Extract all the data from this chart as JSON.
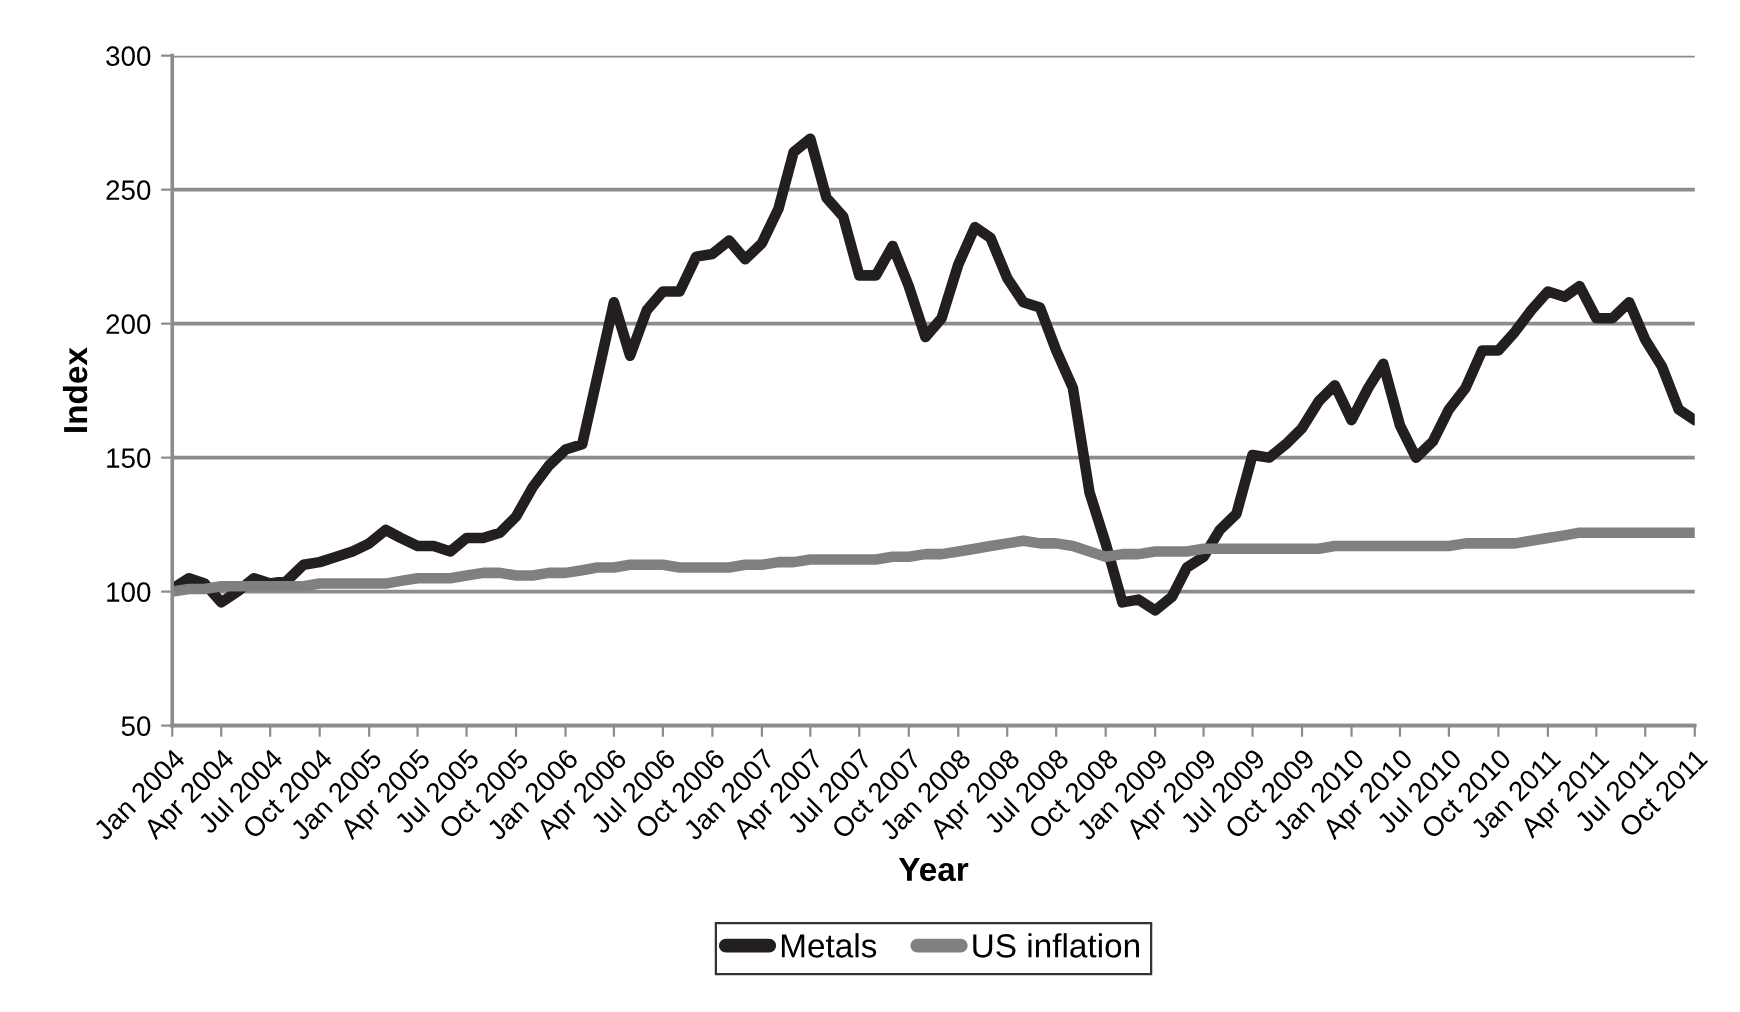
{
  "chart_data": {
    "type": "line",
    "xlabel": "Year",
    "ylabel": "Index",
    "x": [
      "2004-01",
      "2004-02",
      "2004-03",
      "2004-04",
      "2004-05",
      "2004-06",
      "2004-07",
      "2004-08",
      "2004-09",
      "2004-10",
      "2004-11",
      "2004-12",
      "2005-01",
      "2005-02",
      "2005-03",
      "2005-04",
      "2005-05",
      "2005-06",
      "2005-07",
      "2005-08",
      "2005-09",
      "2005-10",
      "2005-11",
      "2005-12",
      "2006-01",
      "2006-02",
      "2006-03",
      "2006-04",
      "2006-05",
      "2006-06",
      "2006-07",
      "2006-08",
      "2006-09",
      "2006-10",
      "2006-11",
      "2006-12",
      "2007-01",
      "2007-02",
      "2007-03",
      "2007-04",
      "2007-05",
      "2007-06",
      "2007-07",
      "2007-08",
      "2007-09",
      "2007-10",
      "2007-11",
      "2007-12",
      "2008-01",
      "2008-02",
      "2008-03",
      "2008-04",
      "2008-05",
      "2008-06",
      "2008-07",
      "2008-08",
      "2008-09",
      "2008-10",
      "2008-11",
      "2008-12",
      "2009-01",
      "2009-02",
      "2009-03",
      "2009-04",
      "2009-05",
      "2009-06",
      "2009-07",
      "2009-08",
      "2009-09",
      "2009-10",
      "2009-11",
      "2009-12",
      "2010-01",
      "2010-02",
      "2010-03",
      "2010-04",
      "2010-05",
      "2010-06",
      "2010-07",
      "2010-08",
      "2010-09",
      "2010-10",
      "2010-11",
      "2010-12",
      "2011-01",
      "2011-02",
      "2011-03",
      "2011-04",
      "2011-05",
      "2011-06",
      "2011-07",
      "2011-08",
      "2011-09",
      "2011-10"
    ],
    "series": [
      {
        "name": "Metals",
        "color": "#231f20",
        "values": [
          101,
          105,
          103,
          96,
          100,
          105,
          103,
          104,
          110,
          111,
          113,
          115,
          118,
          123,
          120,
          117,
          117,
          115,
          120,
          120,
          122,
          128,
          139,
          147,
          153,
          155,
          180,
          208,
          188,
          205,
          212,
          212,
          225,
          226,
          231,
          224,
          230,
          243,
          264,
          269,
          247,
          240,
          218,
          218,
          229,
          214,
          195,
          202,
          222,
          236,
          232,
          217,
          208,
          206,
          190,
          176,
          137,
          118,
          96,
          97,
          93,
          98,
          109,
          113,
          123,
          129,
          151,
          150,
          155,
          161,
          171,
          177,
          164,
          176,
          185,
          162,
          150,
          156,
          168,
          176,
          190,
          190,
          197,
          205,
          212,
          210,
          214,
          202,
          202,
          208,
          194,
          184,
          168,
          164
        ]
      },
      {
        "name": "US inflation",
        "color": "#808080",
        "values": [
          100,
          101,
          101,
          102,
          102,
          102,
          102,
          102,
          102,
          103,
          103,
          103,
          103,
          103,
          104,
          105,
          105,
          105,
          106,
          107,
          107,
          106,
          106,
          107,
          107,
          108,
          109,
          109,
          110,
          110,
          110,
          109,
          109,
          109,
          109,
          110,
          110,
          111,
          111,
          112,
          112,
          112,
          112,
          112,
          113,
          113,
          114,
          114,
          115,
          116,
          117,
          118,
          119,
          118,
          118,
          117,
          115,
          113,
          114,
          114,
          115,
          115,
          115,
          116,
          116,
          116,
          116,
          116,
          116,
          116,
          116,
          117,
          117,
          117,
          117,
          117,
          117,
          117,
          117,
          118,
          118,
          118,
          118,
          119,
          120,
          121,
          122,
          122,
          122,
          122,
          122,
          122,
          122,
          122
        ]
      }
    ],
    "xlim": [
      "2004-01",
      "2011-10"
    ],
    "xticks": [
      {
        "value": "2004-01",
        "label": "Jan 2004"
      },
      {
        "value": "2004-04",
        "label": "Apr 2004"
      },
      {
        "value": "2004-07",
        "label": "Jul 2004"
      },
      {
        "value": "2004-10",
        "label": "Oct 2004"
      },
      {
        "value": "2005-01",
        "label": "Jan 2005"
      },
      {
        "value": "2005-04",
        "label": "Apr 2005"
      },
      {
        "value": "2005-07",
        "label": "Jul 2005"
      },
      {
        "value": "2005-10",
        "label": "Oct 2005"
      },
      {
        "value": "2006-01",
        "label": "Jan 2006"
      },
      {
        "value": "2006-04",
        "label": "Apr 2006"
      },
      {
        "value": "2006-07",
        "label": "Jul 2006"
      },
      {
        "value": "2006-10",
        "label": "Oct 2006"
      },
      {
        "value": "2007-01",
        "label": "Jan 2007"
      },
      {
        "value": "2007-04",
        "label": "Apr 2007"
      },
      {
        "value": "2007-07",
        "label": "Jul 2007"
      },
      {
        "value": "2007-10",
        "label": "Oct 2007"
      },
      {
        "value": "2008-01",
        "label": "Jan 2008"
      },
      {
        "value": "2008-04",
        "label": "Apr 2008"
      },
      {
        "value": "2008-07",
        "label": "Jul 2008"
      },
      {
        "value": "2008-10",
        "label": "Oct 2008"
      },
      {
        "value": "2009-01",
        "label": "Jan 2009"
      },
      {
        "value": "2009-04",
        "label": "Apr 2009"
      },
      {
        "value": "2009-07",
        "label": "Jul 2009"
      },
      {
        "value": "2009-10",
        "label": "Oct 2009"
      },
      {
        "value": "2010-01",
        "label": "Jan 2010"
      },
      {
        "value": "2010-04",
        "label": "Apr 2010"
      },
      {
        "value": "2010-07",
        "label": "Jul 2010"
      },
      {
        "value": "2010-10",
        "label": "Oct 2010"
      },
      {
        "value": "2011-01",
        "label": "Jan 2011"
      },
      {
        "value": "2011-04",
        "label": "Apr 2011"
      },
      {
        "value": "2011-07",
        "label": "Jul 2011"
      },
      {
        "value": "2011-10",
        "label": "Oct 2011"
      }
    ],
    "ylim": [
      50,
      300
    ],
    "yticks": [
      50,
      100,
      150,
      200,
      250,
      300
    ],
    "grid": "y",
    "legend": "bottom",
    "marker": "none",
    "line_style": "solid"
  }
}
